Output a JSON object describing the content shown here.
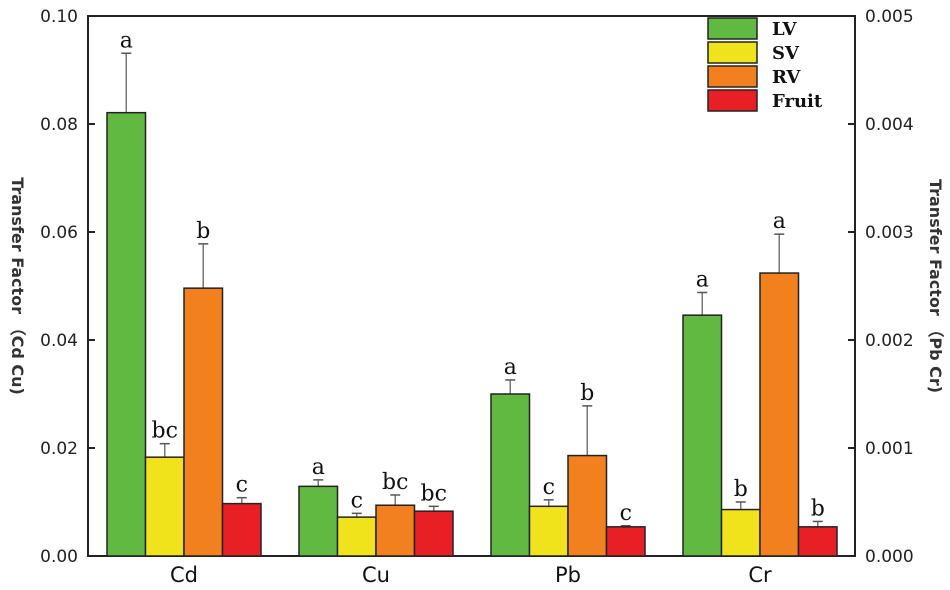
{
  "chart_data": {
    "type": "bar",
    "categories": [
      "Cd",
      "Cu",
      "Pb",
      "Cr"
    ],
    "category_axis": [
      "left",
      "left",
      "right",
      "right"
    ],
    "ylabel_left": "Transfer Factor （Cd Cu)",
    "ylabel_right": "Transfer Factor （Pb Cr)",
    "ylim_left": [
      0,
      0.1
    ],
    "ylim_right": [
      0,
      0.005
    ],
    "yticks_left": [
      "0.00",
      "0.02",
      "0.04",
      "0.06",
      "0.08",
      "0.10"
    ],
    "yticks_right": [
      "0.000",
      "0.001",
      "0.002",
      "0.003",
      "0.004",
      "0.005"
    ],
    "legend_position": "top-right",
    "grid": false,
    "series": [
      {
        "name": "LV",
        "color": "#62b942",
        "values": [
          0.0821,
          0.0129,
          0.0015,
          0.00223
        ],
        "errors": [
          0.011,
          0.0012,
          0.00013,
          0.00021
        ],
        "labels": [
          "a",
          "a",
          "a",
          "a"
        ]
      },
      {
        "name": "SV",
        "color": "#f0e31c",
        "values": [
          0.0183,
          0.0072,
          0.00046,
          0.00043
        ],
        "errors": [
          0.0025,
          0.0007,
          6e-05,
          7e-05
        ],
        "labels": [
          "bc",
          "c",
          "c",
          "b"
        ]
      },
      {
        "name": "RV",
        "color": "#f3801f",
        "values": [
          0.0496,
          0.0094,
          0.00093,
          0.00262
        ],
        "errors": [
          0.0082,
          0.0019,
          0.00046,
          0.00036
        ],
        "labels": [
          "b",
          "bc",
          "b",
          "a"
        ]
      },
      {
        "name": "Fruit",
        "color": "#e82026",
        "values": [
          0.0097,
          0.0083,
          0.00027,
          0.00027
        ],
        "errors": [
          0.0011,
          0.0009,
          1e-05,
          5e-05
        ],
        "labels": [
          "c",
          "bc",
          "c",
          "b"
        ]
      }
    ]
  }
}
